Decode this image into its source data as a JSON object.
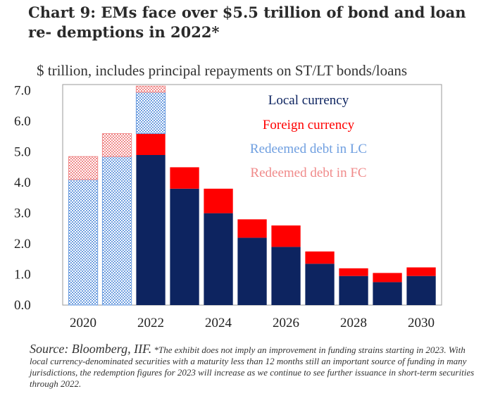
{
  "title": "Chart 9:  EMs face over $5.5 trillion of bond and loan re- demptions in 2022*",
  "subtitle": "$ trillion, includes principal repayments on ST/LT bonds/loans",
  "source_main": "Source: Bloomberg, IIF.",
  "source_note": "*The exhibit does not imply an improvement in funding strains starting in 2023. With local currency-denominated securities with a maturity less than 12 months still an important source of funding in many jurisdictions, the redemption figures for 2023 will increase as we continue to see further issuance in short-term securities through 2022.",
  "colors": {
    "local": "#0d2460",
    "foreign": "#ff0000",
    "redeemed_lc": "#6f9fe0",
    "redeemed_fc": "#f08a8a"
  },
  "chart_data": {
    "type": "bar",
    "stacked": true,
    "categories": [
      "2020",
      "2021",
      "2022",
      "2023",
      "2024",
      "2025",
      "2026",
      "2027",
      "2028",
      "2029",
      "2030"
    ],
    "x_tick_labels": [
      "2020",
      "2022",
      "2024",
      "2026",
      "2028",
      "2030"
    ],
    "y_ticks": [
      "0.0",
      "1.0",
      "2.0",
      "3.0",
      "4.0",
      "5.0",
      "6.0",
      "7.0"
    ],
    "ylim": [
      0,
      7.2
    ],
    "legend_position": "top-right",
    "series": [
      {
        "name": "Local currency",
        "color": "#0d2460",
        "pattern": "solid",
        "values": [
          0,
          0,
          4.9,
          3.8,
          3.0,
          2.2,
          1.9,
          1.35,
          0.95,
          0.75,
          0.95
        ]
      },
      {
        "name": "Foreign currency",
        "color": "#ff0000",
        "pattern": "solid",
        "values": [
          0,
          0,
          0.7,
          0.7,
          0.8,
          0.6,
          0.7,
          0.4,
          0.25,
          0.3,
          0.28
        ]
      },
      {
        "name": "Redeemed debt in LC",
        "color": "#6f9fe0",
        "pattern": "checker",
        "values": [
          4.1,
          4.85,
          1.35,
          0,
          0,
          0,
          0,
          0,
          0,
          0,
          0
        ]
      },
      {
        "name": "Redeemed debt in FC",
        "color": "#f08a8a",
        "pattern": "checker",
        "values": [
          0.75,
          0.75,
          0.2,
          0,
          0,
          0,
          0,
          0,
          0,
          0,
          0
        ]
      }
    ]
  }
}
